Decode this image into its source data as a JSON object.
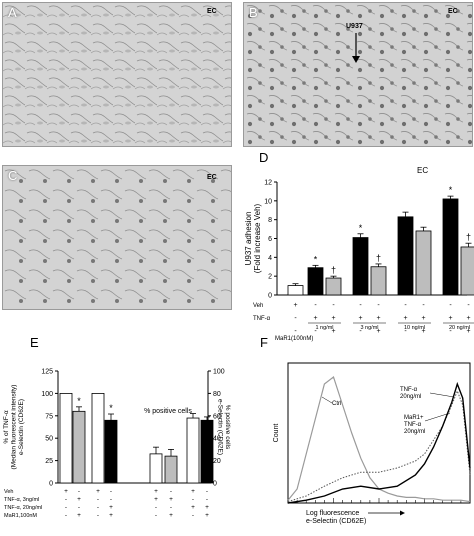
{
  "panels": {
    "A": {
      "letter": "A",
      "tag": "EC"
    },
    "B": {
      "letter": "B",
      "tag": "EC",
      "arrow_label": "U937"
    },
    "C": {
      "letter": "C",
      "tag": "EC"
    },
    "D": {
      "letter": "D",
      "tag": "EC"
    },
    "E": {
      "letter": "E"
    },
    "F": {
      "letter": "F"
    }
  },
  "chart_data": [
    {
      "id": "D",
      "type": "bar",
      "ylabel": "U937 adhesion\n(Fold increase Veh)",
      "ylim": [
        0,
        12
      ],
      "yticks": [
        0,
        2,
        4,
        6,
        8,
        10,
        12
      ],
      "row_labels": [
        "Veh",
        "TNF-α",
        "MaR1(100nM)"
      ],
      "conditions": [
        {
          "veh": "+",
          "tnf": "-",
          "mar1": "-",
          "value": 1.0,
          "err": 0.2,
          "color": "white",
          "mark": ""
        },
        {
          "veh": "-",
          "tnf": "+",
          "mar1": "-",
          "value": 2.9,
          "err": 0.25,
          "color": "black",
          "mark": "*"
        },
        {
          "veh": "-",
          "tnf": "+",
          "mar1": "+",
          "value": 1.8,
          "err": 0.2,
          "color": "grey",
          "mark": "†"
        },
        {
          "veh": "-",
          "tnf": "+",
          "mar1": "-",
          "value": 6.1,
          "err": 0.4,
          "color": "black",
          "mark": "*"
        },
        {
          "veh": "-",
          "tnf": "+",
          "mar1": "+",
          "value": 3.0,
          "err": 0.3,
          "color": "grey",
          "mark": "†"
        },
        {
          "veh": "-",
          "tnf": "+",
          "mar1": "-",
          "value": 8.3,
          "err": 0.5,
          "color": "black",
          "mark": ""
        },
        {
          "veh": "-",
          "tnf": "+",
          "mar1": "+",
          "value": 6.8,
          "err": 0.4,
          "color": "grey",
          "mark": ""
        },
        {
          "veh": "-",
          "tnf": "+",
          "mar1": "-",
          "value": 10.2,
          "err": 0.3,
          "color": "black",
          "mark": "*"
        },
        {
          "veh": "-",
          "tnf": "+",
          "mar1": "+",
          "value": 5.1,
          "err": 0.4,
          "color": "grey",
          "mark": "†"
        }
      ],
      "dose_labels": [
        "1 ng/ml",
        "3 ng/ml",
        "10 ng/ml",
        "20 ng/ml"
      ]
    },
    {
      "id": "E",
      "type": "bar",
      "ylabel_left": "% of TNF-α\n(Median fluorescent intensity)\ne-Selectin (CD62E)",
      "ylim_left": [
        0,
        125
      ],
      "yticks_left": [
        0,
        25,
        50,
        75,
        100,
        125
      ],
      "ylabel_right": "% positive cells\ne-Selectin (CD62E)",
      "ylim_right": [
        0,
        100
      ],
      "yticks_right": [
        0,
        20,
        40,
        60,
        80,
        100
      ],
      "section_label": "% positive cells",
      "row_labels": [
        "Veh",
        "TNF-α, 3ng/ml",
        "TNF-α, 20ng/ml",
        "MaR1,100nM"
      ],
      "mfi_bars": [
        {
          "value": 100,
          "err": 0,
          "color": "white",
          "mark": "",
          "signs": [
            "+",
            "-",
            "-",
            "-"
          ]
        },
        {
          "value": 80,
          "err": 5,
          "color": "grey",
          "mark": "*",
          "signs": [
            "-",
            "+",
            "-",
            "+"
          ]
        },
        {
          "value": 100,
          "err": 0,
          "color": "white",
          "mark": "",
          "signs": [
            "+",
            "-",
            "-",
            "-"
          ]
        },
        {
          "value": 70,
          "err": 7,
          "color": "black",
          "mark": "*",
          "signs": [
            "-",
            "-",
            "+",
            "+"
          ]
        }
      ],
      "pct_bars": [
        {
          "value": 26,
          "err": 6,
          "color": "white",
          "signs": [
            "+",
            "+",
            "-",
            "-"
          ]
        },
        {
          "value": 24,
          "err": 6,
          "color": "grey",
          "signs": [
            "-",
            "+",
            "-",
            "+"
          ]
        },
        {
          "value": 58,
          "err": 4,
          "color": "white",
          "signs": [
            "+",
            "-",
            "+",
            "-"
          ]
        },
        {
          "value": 56,
          "err": 3,
          "color": "black",
          "signs": [
            "-",
            "-",
            "+",
            "+"
          ]
        }
      ]
    },
    {
      "id": "F",
      "type": "line",
      "xlabel": "Log fluorescence\ne-Selectin (CD62E)",
      "ylabel": "Count",
      "annotations": [
        "Ctrl",
        "TNF-α\n20ng/ml",
        "MaR1+\nTNF-α\n20ng/ml"
      ],
      "series": [
        {
          "name": "Ctrl",
          "style": "grey-solid",
          "x": [
            0,
            0.05,
            0.1,
            0.15,
            0.2,
            0.25,
            0.3,
            0.35,
            0.4,
            0.45,
            0.5,
            0.55,
            0.6,
            0.65,
            0.7,
            0.75,
            0.8,
            0.85,
            0.9,
            0.95,
            1.0
          ],
          "y": [
            0.02,
            0.1,
            0.35,
            0.6,
            0.85,
            0.9,
            0.7,
            0.5,
            0.32,
            0.18,
            0.1,
            0.07,
            0.05,
            0.04,
            0.04,
            0.03,
            0.03,
            0.02,
            0.02,
            0.02,
            0.01
          ]
        },
        {
          "name": "TNF-α 20ng/ml",
          "style": "dotted",
          "x": [
            0,
            0.1,
            0.2,
            0.3,
            0.4,
            0.5,
            0.6,
            0.7,
            0.75,
            0.8,
            0.85,
            0.9,
            0.93,
            0.96,
            1.0
          ],
          "y": [
            0.01,
            0.05,
            0.12,
            0.18,
            0.22,
            0.22,
            0.25,
            0.3,
            0.35,
            0.45,
            0.55,
            0.7,
            0.8,
            0.7,
            0.2
          ]
        },
        {
          "name": "MaR1+TNF-α 20ng/ml",
          "style": "black-solid",
          "x": [
            0,
            0.1,
            0.2,
            0.3,
            0.4,
            0.5,
            0.6,
            0.7,
            0.75,
            0.8,
            0.85,
            0.9,
            0.93,
            0.96,
            1.0
          ],
          "y": [
            0.0,
            0.02,
            0.05,
            0.1,
            0.12,
            0.1,
            0.12,
            0.2,
            0.28,
            0.4,
            0.55,
            0.72,
            0.85,
            0.75,
            0.25
          ]
        }
      ]
    }
  ]
}
